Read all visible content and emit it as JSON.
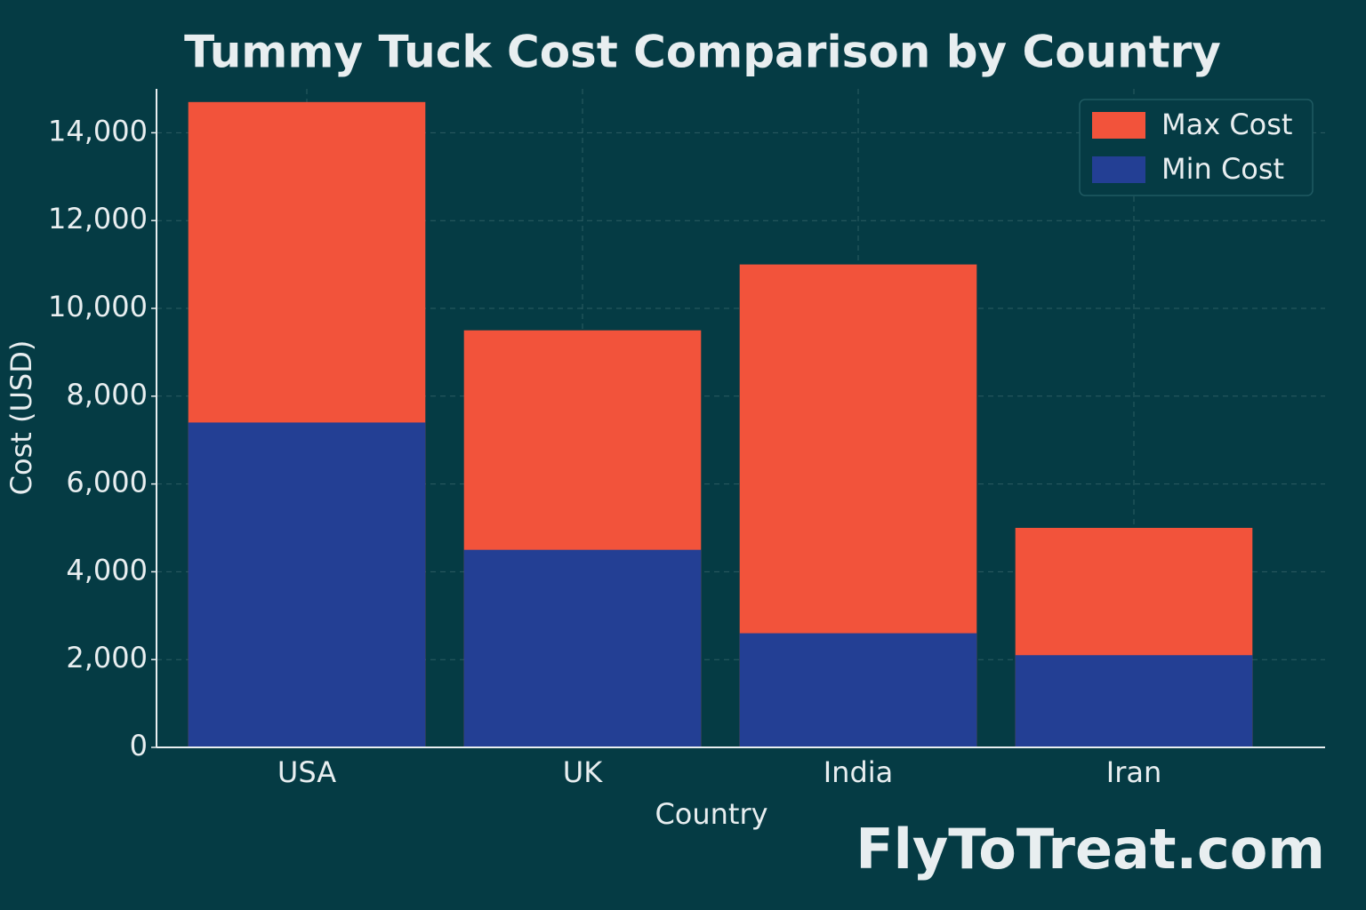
{
  "chart_data": {
    "type": "bar",
    "title": "Tummy Tuck Cost Comparison by Country",
    "x_label": "Country",
    "y_label": "Cost (USD)",
    "watermark": "FlyToTreat.com",
    "categories": [
      "USA",
      "UK",
      "India",
      "Iran"
    ],
    "series": [
      {
        "name": "Max Cost",
        "color": "#f2533b",
        "values": [
          14700,
          9500,
          11000,
          5000
        ]
      },
      {
        "name": "Min Cost",
        "color": "#233f94",
        "values": [
          7400,
          4500,
          2600,
          2100
        ]
      }
    ],
    "ylim": [
      0,
      15000
    ],
    "yticks": [
      0,
      {
        "value": 2000,
        "label": "2,000"
      },
      {
        "value": 4000,
        "label": "4,000"
      },
      {
        "value": 6000,
        "label": "6,000"
      },
      {
        "value": 8000,
        "label": "8,000"
      },
      {
        "value": 10000,
        "label": "10,000"
      },
      {
        "value": 12000,
        "label": "12,000"
      },
      {
        "value": 14000,
        "label": "14,000"
      }
    ],
    "grid": true,
    "legend": "upper right"
  }
}
